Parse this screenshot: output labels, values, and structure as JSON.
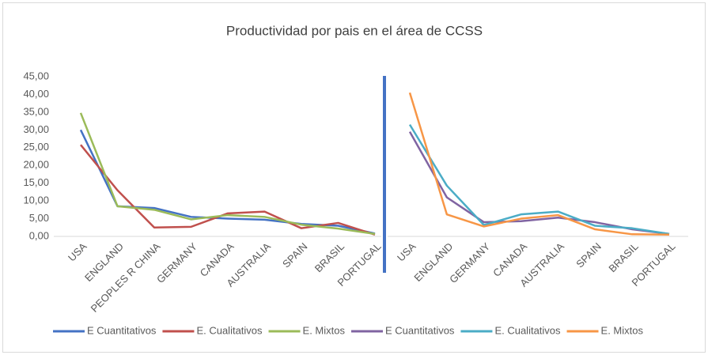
{
  "chart_data": {
    "type": "line",
    "title": "Productividad por pais en el área de CCSS",
    "ylim": [
      0,
      45
    ],
    "yticks": [
      {
        "value": 0,
        "label": "0,00"
      },
      {
        "value": 5,
        "label": "5,00"
      },
      {
        "value": 10,
        "label": "10,00"
      },
      {
        "value": 15,
        "label": "15,00"
      },
      {
        "value": 20,
        "label": "20,00"
      },
      {
        "value": 25,
        "label": "25,00"
      },
      {
        "value": 30,
        "label": "30,00"
      },
      {
        "value": 35,
        "label": "35,00"
      },
      {
        "value": 40,
        "label": "40,00"
      },
      {
        "value": 45,
        "label": "45,00"
      }
    ],
    "panels": [
      {
        "categories": [
          "USA",
          "ENGLAND",
          "PEOPLES R CHINA",
          "GERMANY",
          "CANADA",
          "AUSTRALIA",
          "SPAIN",
          "BRASIL",
          "PORTUGAL"
        ],
        "series": [
          {
            "name": "E Cuantitativos",
            "color": "#4472c4",
            "values": [
              30,
              8.5,
              8,
              5.5,
              5,
              4.7,
              3.5,
              3,
              0.8
            ]
          },
          {
            "name": "E. Cualitativos",
            "color": "#c0504d",
            "values": [
              25.8,
              13,
              2.5,
              2.7,
              6.5,
              7,
              2.3,
              3.8,
              0.5
            ]
          },
          {
            "name": "E. Mixtos",
            "color": "#9bbb59",
            "values": [
              34.8,
              8.5,
              7.5,
              4.8,
              6,
              5.5,
              3.3,
              2.2,
              0.7
            ]
          }
        ]
      },
      {
        "categories": [
          "USA",
          "ENGLAND",
          "GERMANY",
          "CANADA",
          "AUSTRALIA",
          "SPAIN",
          "BRASIL",
          "PORTUGAL"
        ],
        "series": [
          {
            "name": "E Cuantitativos",
            "color": "#8064a2",
            "values": [
              29.5,
              11,
              4,
              4.3,
              5.3,
              4,
              2,
              0.7
            ]
          },
          {
            "name": "E. Cualitativos",
            "color": "#4bacc6",
            "values": [
              31.5,
              14.3,
              3.2,
              6.2,
              7,
              3,
              2.3,
              0.7
            ]
          },
          {
            "name": "E. Mixtos",
            "color": "#f79646",
            "values": [
              40.5,
              6.2,
              2.8,
              5,
              6,
              2,
              0.6,
              0.5
            ]
          }
        ]
      }
    ]
  }
}
